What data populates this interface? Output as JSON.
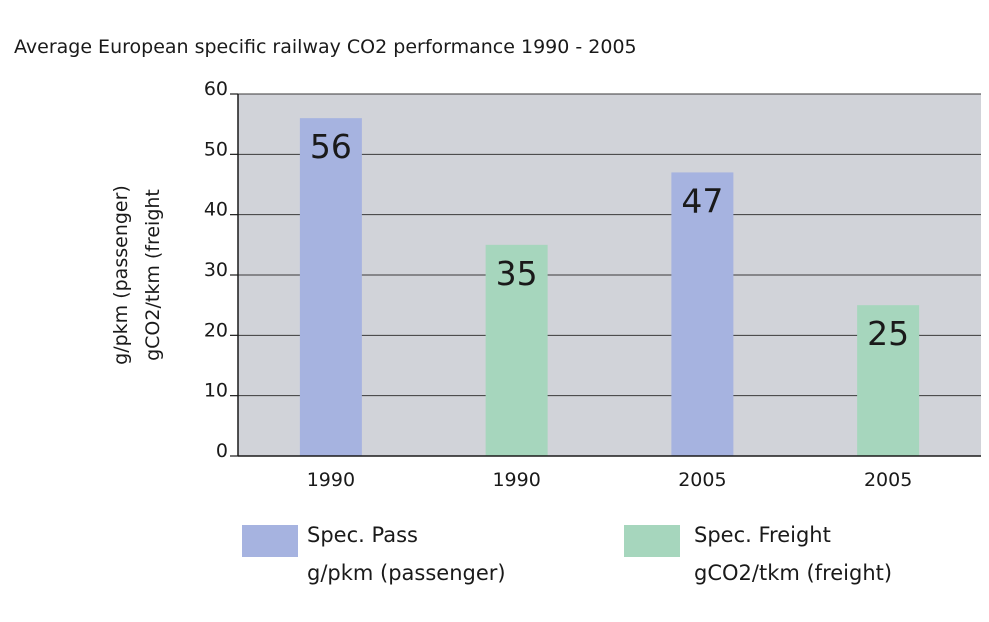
{
  "chart_data": {
    "type": "bar",
    "title": "Average European specific railway CO2 performance 1990 - 2005",
    "categories": [
      "1990",
      "1990",
      "2005",
      "2005"
    ],
    "values": [
      56,
      35,
      47,
      25
    ],
    "bar_series": [
      "pass",
      "freight",
      "pass",
      "freight"
    ],
    "series": [
      {
        "key": "pass",
        "name": "Spec. Pass",
        "unit": "g/pkm (passenger)",
        "color": "#a6b3e0"
      },
      {
        "key": "freight",
        "name": "Spec. Freight",
        "unit": "gCO2/tkm (freight)",
        "color": "#a6d6bd"
      }
    ],
    "xlabel": "",
    "ylabel": [
      "g/pkm (passenger)",
      "gCO2/tkm (freight"
    ],
    "ylim": [
      0,
      60
    ],
    "yticks": [
      0,
      10,
      20,
      30,
      40,
      50,
      60
    ],
    "grid": true,
    "plot_background": "#d1d3d9",
    "legend_position": "bottom"
  }
}
